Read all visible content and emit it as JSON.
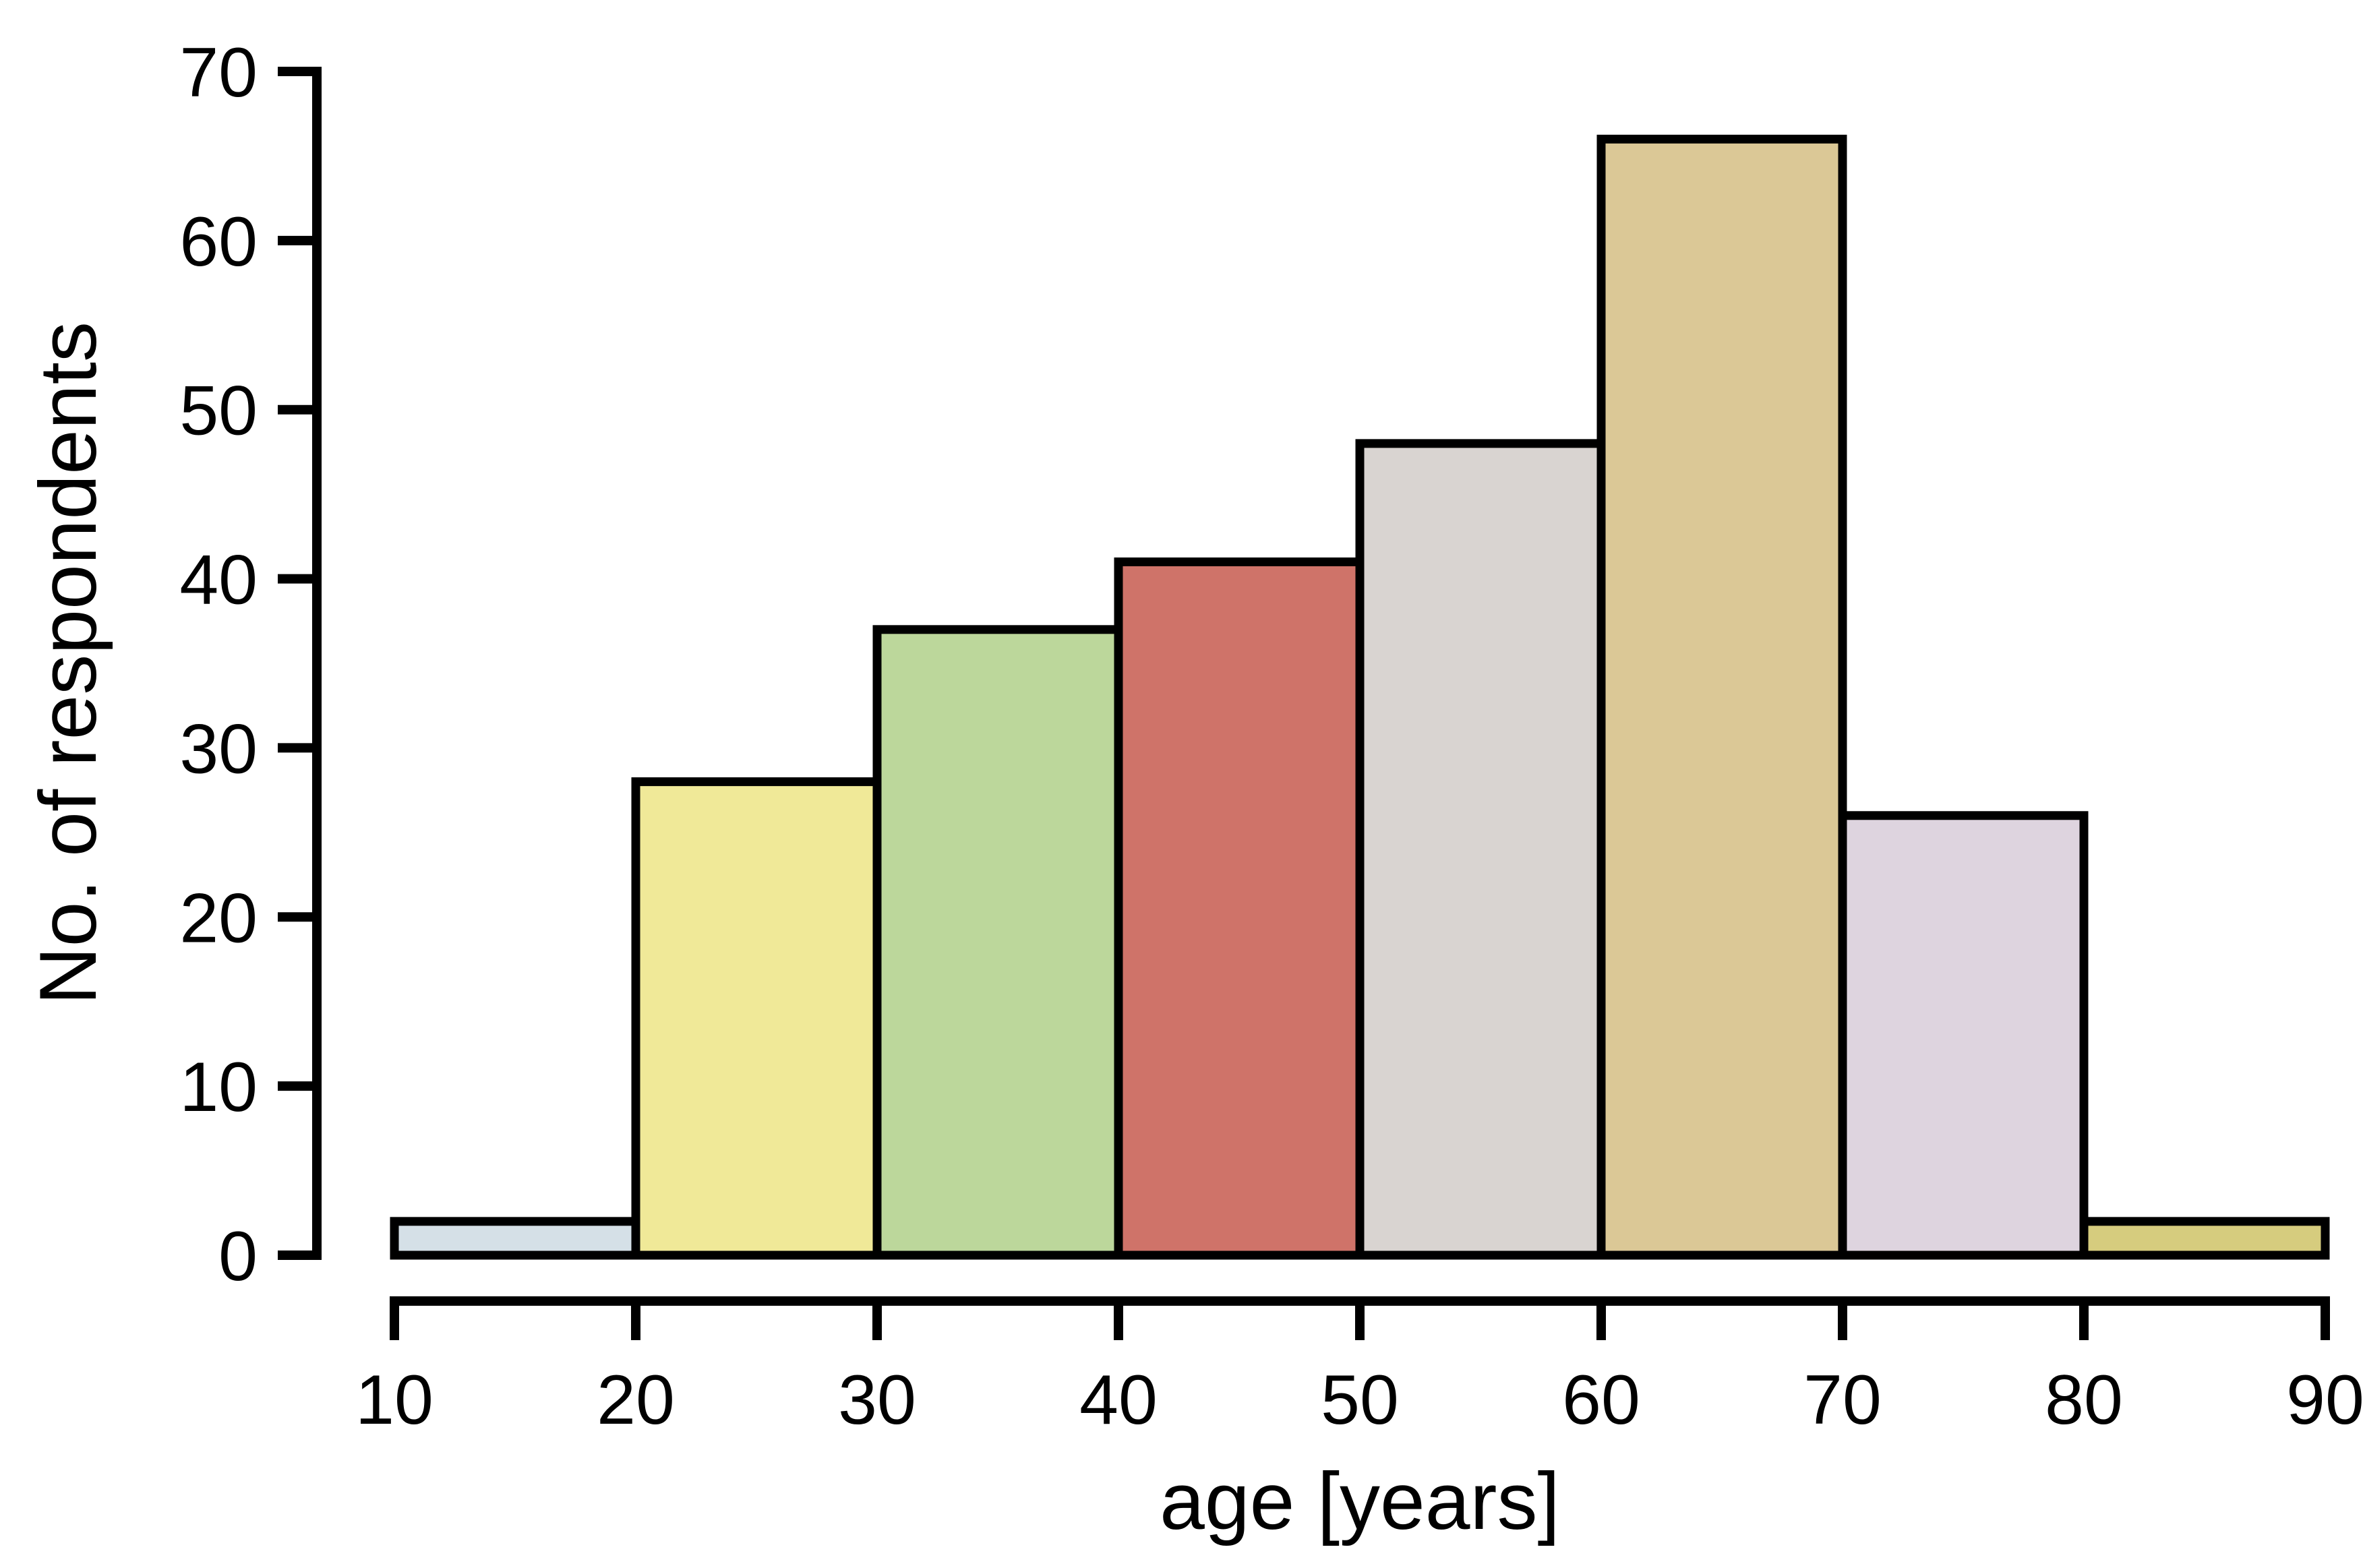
{
  "figure": {
    "background": "#ffffff",
    "axis_color": "#000000",
    "text_color": "#000000"
  },
  "chart_data": {
    "type": "bar",
    "subtype": "histogram",
    "title": "",
    "xlabel": "age [years]",
    "ylabel": "No. of respondents",
    "bin_edges": [
      10,
      20,
      30,
      40,
      50,
      60,
      70,
      80,
      90
    ],
    "categories": [
      "10-20",
      "20-30",
      "30-40",
      "40-50",
      "50-60",
      "60-70",
      "70-80",
      "80-90"
    ],
    "values": [
      2,
      28,
      37,
      41,
      48,
      66,
      26,
      2
    ],
    "bar_colors": [
      "#D5E0E7",
      "#F0E998",
      "#BCD79B",
      "#CF7369",
      "#D9D4D1",
      "#DBC896",
      "#DED4DF",
      "#D6CC7E"
    ],
    "bar_edge_color": "#000000",
    "x_ticks": [
      10,
      20,
      30,
      40,
      50,
      60,
      70,
      80,
      90
    ],
    "y_ticks": [
      0,
      10,
      20,
      30,
      40,
      50,
      60,
      70
    ],
    "xlim": [
      10,
      90
    ],
    "ylim": [
      0,
      70
    ],
    "grid": "off",
    "legend": "none"
  }
}
